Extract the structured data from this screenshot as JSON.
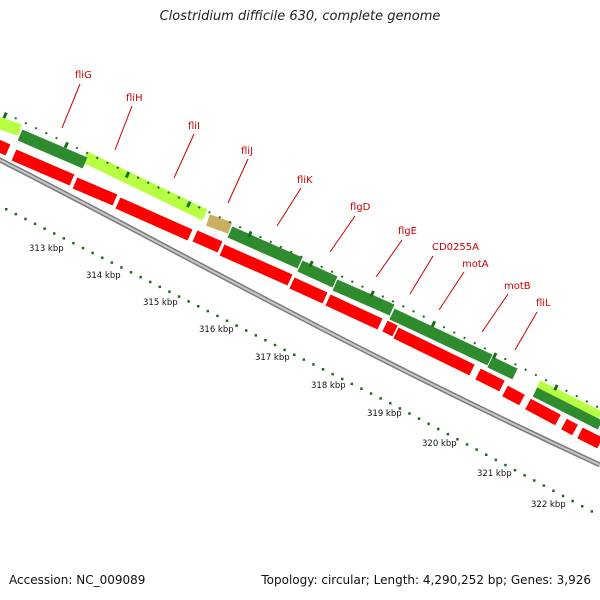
{
  "title": "Clostridium difficile 630, complete genome",
  "footer": {
    "accession": "Accession: NC_009089",
    "topology": "Topology: circular; Length: 4,290,252 bp; Genes: 3,926"
  },
  "colors": {
    "gene_label": "#cc0000",
    "forward_cds": "#ff0000",
    "track_dark": "#2e8b2e",
    "track_light": "#aaff44",
    "track_tan": "#c8b060",
    "axis_ticks": "#1a6e1a",
    "backbone": "#999999"
  },
  "gene_labels": [
    "fliG",
    "fliH",
    "fliI",
    "fliJ",
    "fliK",
    "flgD",
    "flgE",
    "CD0255A",
    "motA",
    "motB",
    "fliL"
  ],
  "kbp_labels": [
    "313 kbp",
    "314 kbp",
    "315 kbp",
    "316 kbp",
    "317 kbp",
    "318 kbp",
    "319 kbp",
    "320 kbp",
    "321 kbp",
    "322 kbp"
  ]
}
